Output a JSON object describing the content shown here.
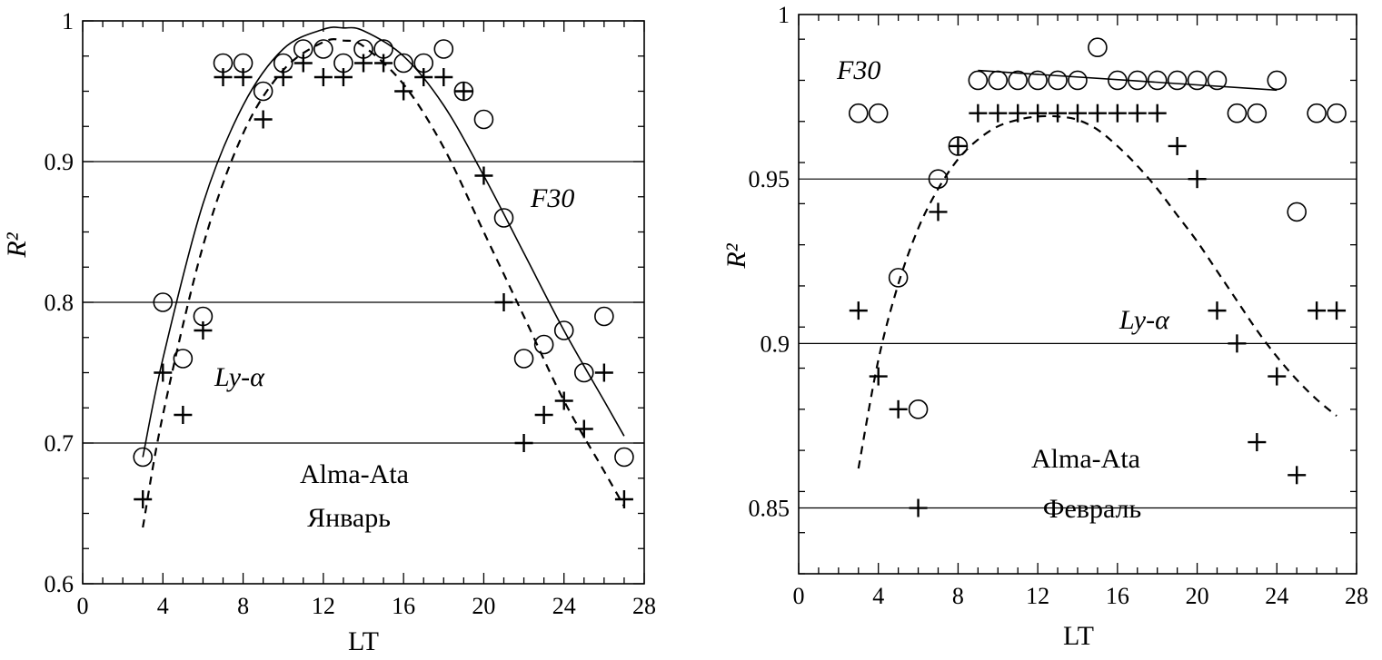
{
  "chart_data": [
    {
      "type": "scatter",
      "panel": "left",
      "xlabel": "LT",
      "ylabel": "R²",
      "xlim": [
        0,
        28
      ],
      "ylim": [
        0.6,
        1.0
      ],
      "xticks": [
        0,
        4,
        8,
        12,
        16,
        20,
        24,
        28
      ],
      "xtick_labels": [
        "0",
        "4",
        "8",
        "12",
        "16",
        "20",
        "24",
        "28"
      ],
      "yticks": [
        0.6,
        0.7,
        0.8,
        0.9,
        1.0
      ],
      "ytick_labels": [
        "0.6",
        "0.7",
        "0.8",
        "0.9",
        "1"
      ],
      "annotations": [
        "Ly-α",
        "F30",
        "Alma-Ata",
        "Январь"
      ],
      "series": [
        {
          "name": "F30",
          "marker": "circle",
          "x": [
            3,
            4,
            5,
            6,
            7,
            8,
            9,
            10,
            11,
            12,
            13,
            14,
            15,
            16,
            17,
            18,
            19,
            20,
            21,
            22,
            23,
            24,
            25,
            26,
            27
          ],
          "y": [
            0.69,
            0.8,
            0.76,
            0.79,
            0.97,
            0.97,
            0.95,
            0.97,
            0.98,
            0.98,
            0.97,
            0.98,
            0.98,
            0.97,
            0.97,
            0.98,
            0.95,
            0.93,
            0.86,
            0.76,
            0.77,
            0.78,
            0.75,
            0.79,
            0.69
          ]
        },
        {
          "name": "Ly-α",
          "marker": "plus",
          "x": [
            3,
            4,
            5,
            6,
            7,
            8,
            9,
            10,
            11,
            12,
            13,
            14,
            15,
            16,
            17,
            18,
            19,
            20,
            21,
            22,
            23,
            24,
            25,
            26,
            27
          ],
          "y": [
            0.66,
            0.75,
            0.72,
            0.78,
            0.96,
            0.96,
            0.93,
            0.96,
            0.97,
            0.96,
            0.96,
            0.97,
            0.97,
            0.95,
            0.96,
            0.96,
            0.95,
            0.89,
            0.8,
            0.7,
            0.72,
            0.73,
            0.71,
            0.75,
            0.66
          ]
        },
        {
          "name": "F30 fit",
          "style": "solid",
          "x": [
            3,
            4,
            6,
            8,
            10,
            12,
            13,
            14,
            16,
            18,
            20,
            22,
            24,
            26,
            27
          ],
          "y": [
            0.69,
            0.76,
            0.87,
            0.94,
            0.98,
            0.994,
            0.995,
            0.993,
            0.975,
            0.94,
            0.89,
            0.835,
            0.78,
            0.73,
            0.705
          ]
        },
        {
          "name": "Ly-α fit",
          "style": "dashed",
          "x": [
            3,
            4,
            6,
            8,
            10,
            12,
            13,
            14,
            16,
            18,
            20,
            22,
            24,
            26,
            27
          ],
          "y": [
            0.64,
            0.72,
            0.84,
            0.92,
            0.965,
            0.985,
            0.986,
            0.982,
            0.955,
            0.91,
            0.85,
            0.79,
            0.73,
            0.68,
            0.655
          ]
        }
      ]
    },
    {
      "type": "scatter",
      "panel": "right",
      "xlabel": "LT",
      "ylabel": "R²",
      "xlim": [
        0,
        28
      ],
      "ylim": [
        0.83,
        1.0
      ],
      "xticks": [
        0,
        4,
        8,
        12,
        16,
        20,
        24,
        28
      ],
      "xtick_labels": [
        "0",
        "4",
        "8",
        "12",
        "16",
        "20",
        "24",
        "28"
      ],
      "yticks": [
        0.85,
        0.9,
        0.95,
        1.0
      ],
      "ytick_labels": [
        "0.85",
        "0.9",
        "0.95",
        "1"
      ],
      "annotations": [
        "F30",
        "Ly-α",
        "Alma-Ata",
        "Февраль"
      ],
      "series": [
        {
          "name": "F30",
          "marker": "circle",
          "x": [
            3,
            4,
            5,
            6,
            7,
            8,
            9,
            10,
            11,
            12,
            13,
            14,
            15,
            16,
            17,
            18,
            19,
            20,
            21,
            22,
            23,
            24,
            25,
            26,
            27
          ],
          "y": [
            0.97,
            0.97,
            0.92,
            0.88,
            0.95,
            0.96,
            0.98,
            0.98,
            0.98,
            0.98,
            0.98,
            0.98,
            0.99,
            0.98,
            0.98,
            0.98,
            0.98,
            0.98,
            0.98,
            0.97,
            0.97,
            0.98,
            0.94,
            0.97,
            0.97
          ]
        },
        {
          "name": "Ly-α",
          "marker": "plus",
          "x": [
            3,
            4,
            5,
            6,
            7,
            8,
            9,
            10,
            11,
            12,
            13,
            14,
            15,
            16,
            17,
            18,
            19,
            20,
            21,
            22,
            23,
            24,
            25,
            26,
            27
          ],
          "y": [
            0.91,
            0.89,
            0.88,
            0.85,
            0.94,
            0.96,
            0.97,
            0.97,
            0.97,
            0.97,
            0.97,
            0.97,
            0.97,
            0.97,
            0.97,
            0.97,
            0.96,
            0.95,
            0.91,
            0.9,
            0.87,
            0.89,
            0.86,
            0.91,
            0.91
          ]
        },
        {
          "name": "F30 fit",
          "style": "solid",
          "x": [
            9,
            24
          ],
          "y": [
            0.983,
            0.977
          ]
        },
        {
          "name": "Ly-α fit",
          "style": "dashed",
          "x": [
            3,
            4,
            5,
            6,
            7,
            8,
            9,
            10,
            11,
            12,
            13,
            14,
            15,
            16,
            17,
            18,
            19,
            20,
            21,
            22,
            23,
            24,
            25,
            26,
            27
          ],
          "y": [
            0.862,
            0.895,
            0.918,
            0.935,
            0.947,
            0.956,
            0.962,
            0.966,
            0.968,
            0.969,
            0.969,
            0.968,
            0.965,
            0.96,
            0.954,
            0.947,
            0.939,
            0.931,
            0.922,
            0.913,
            0.904,
            0.896,
            0.889,
            0.883,
            0.878
          ]
        }
      ]
    }
  ]
}
